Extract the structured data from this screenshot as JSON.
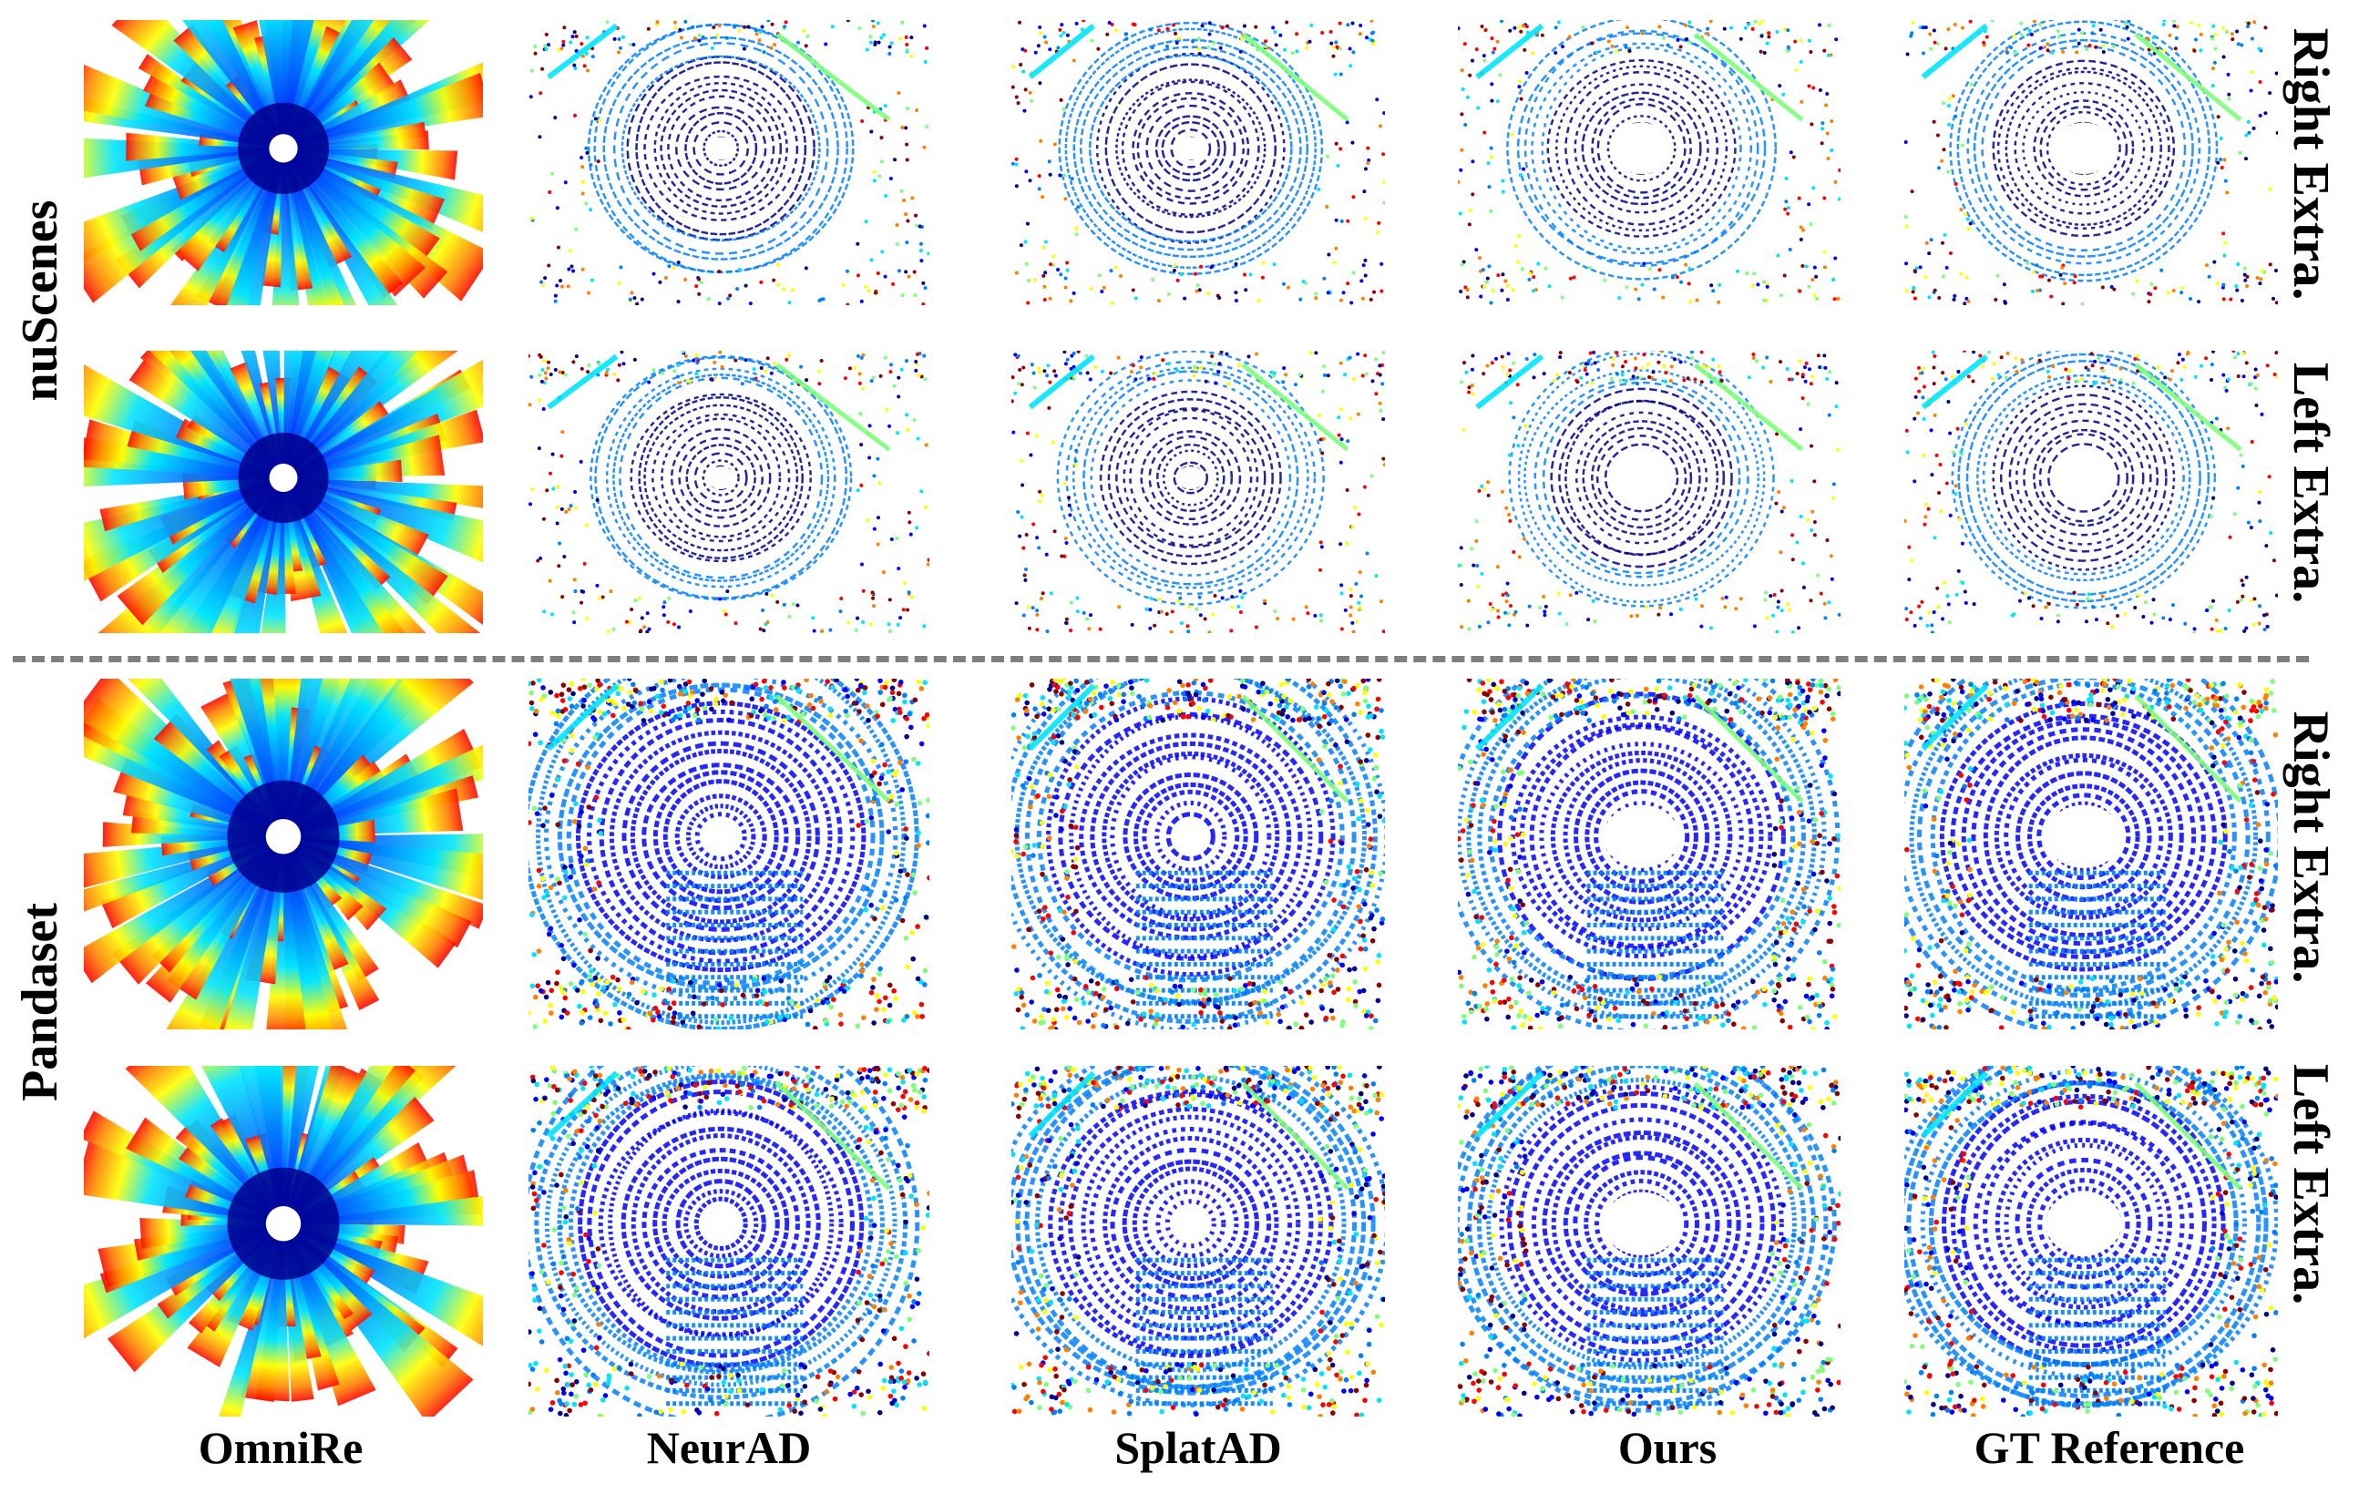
{
  "figure": {
    "dataset_labels": [
      "nuScenes",
      "Pandaset"
    ],
    "row_labels": [
      "Right Extra.",
      "Left Extra.",
      "Right Extra.",
      "Left Extra."
    ],
    "method_labels": [
      "OmniRe",
      "NeurAD",
      "SplatAD",
      "Ours",
      "GT Reference"
    ]
  },
  "colormap": [
    "#00008b",
    "#0000ff",
    "#0080ff",
    "#00e5ff",
    "#7dff7a",
    "#ffff00",
    "#ff8000",
    "#ff0000",
    "#8b0000"
  ],
  "grid": {
    "rows": [
      {
        "dataset": "nuScenes",
        "label": "Right Extra.",
        "panels": [
          "omnire",
          "neurad",
          "splatad",
          "ours",
          "gt"
        ]
      },
      {
        "dataset": "nuScenes",
        "label": "Left Extra.",
        "panels": [
          "omnire",
          "neurad",
          "splatad",
          "ours",
          "gt"
        ]
      },
      {
        "dataset": "Pandaset",
        "label": "Right Extra.",
        "panels": [
          "omnire",
          "neurad",
          "splatad",
          "ours",
          "gt"
        ]
      },
      {
        "dataset": "Pandaset",
        "label": "Left Extra.",
        "panels": [
          "omnire",
          "neurad",
          "splatad",
          "ours",
          "gt"
        ]
      }
    ]
  }
}
